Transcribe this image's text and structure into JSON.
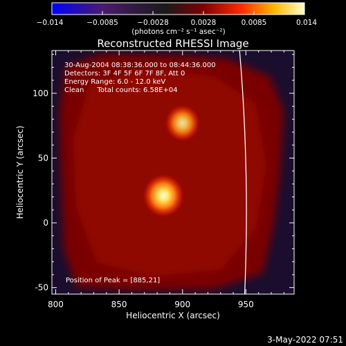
{
  "chart_data": {
    "type": "heatmap",
    "title": "Reconstructed RHESSI Image",
    "xlabel": "Heliocentric X (arcsec)",
    "ylabel": "Heliocentric Y (arcsec)",
    "xlim": [
      797,
      988
    ],
    "ylim": [
      -55,
      133
    ],
    "x_ticks": [
      800,
      850,
      900,
      950
    ],
    "y_ticks": [
      -50,
      0,
      50,
      100
    ],
    "colorbar": {
      "range": [
        -0.014,
        0.014
      ],
      "ticks": [
        "−0.014",
        "−0.0085",
        "−0.0028",
        "0.0028",
        "0.0085",
        "0.014"
      ],
      "label": "(photons cm⁻² s⁻¹ asec⁻²)",
      "colors": [
        "#0000ff",
        "#4a1b6e",
        "#1a1a1a",
        "#800000",
        "#ff2b00",
        "#ffb800",
        "#ffffc8"
      ]
    },
    "annotations": [
      "30-Aug-2004 08:38:36.000 to 08:44:36.000",
      "Detectors: 3F 4F 5F 6F 7F 8F, Att 0",
      "Energy Range: 6.0 - 12.0 keV",
      "Clean      Total counts: 6.58E+04"
    ],
    "peak_label": "Position of Peak = [885,21]",
    "sources": [
      {
        "x": 885,
        "y": 21,
        "relative_intensity": 1.0
      },
      {
        "x": 900,
        "y": 77,
        "relative_intensity": 0.65
      }
    ],
    "limb": {
      "x_at_top": 945,
      "x_at_center": 951,
      "x_at_bottom": 949
    },
    "background_color": "#1a0d2e",
    "disk_region_color": "#7a0000",
    "timestamp": "3-May-2022 07:51"
  }
}
